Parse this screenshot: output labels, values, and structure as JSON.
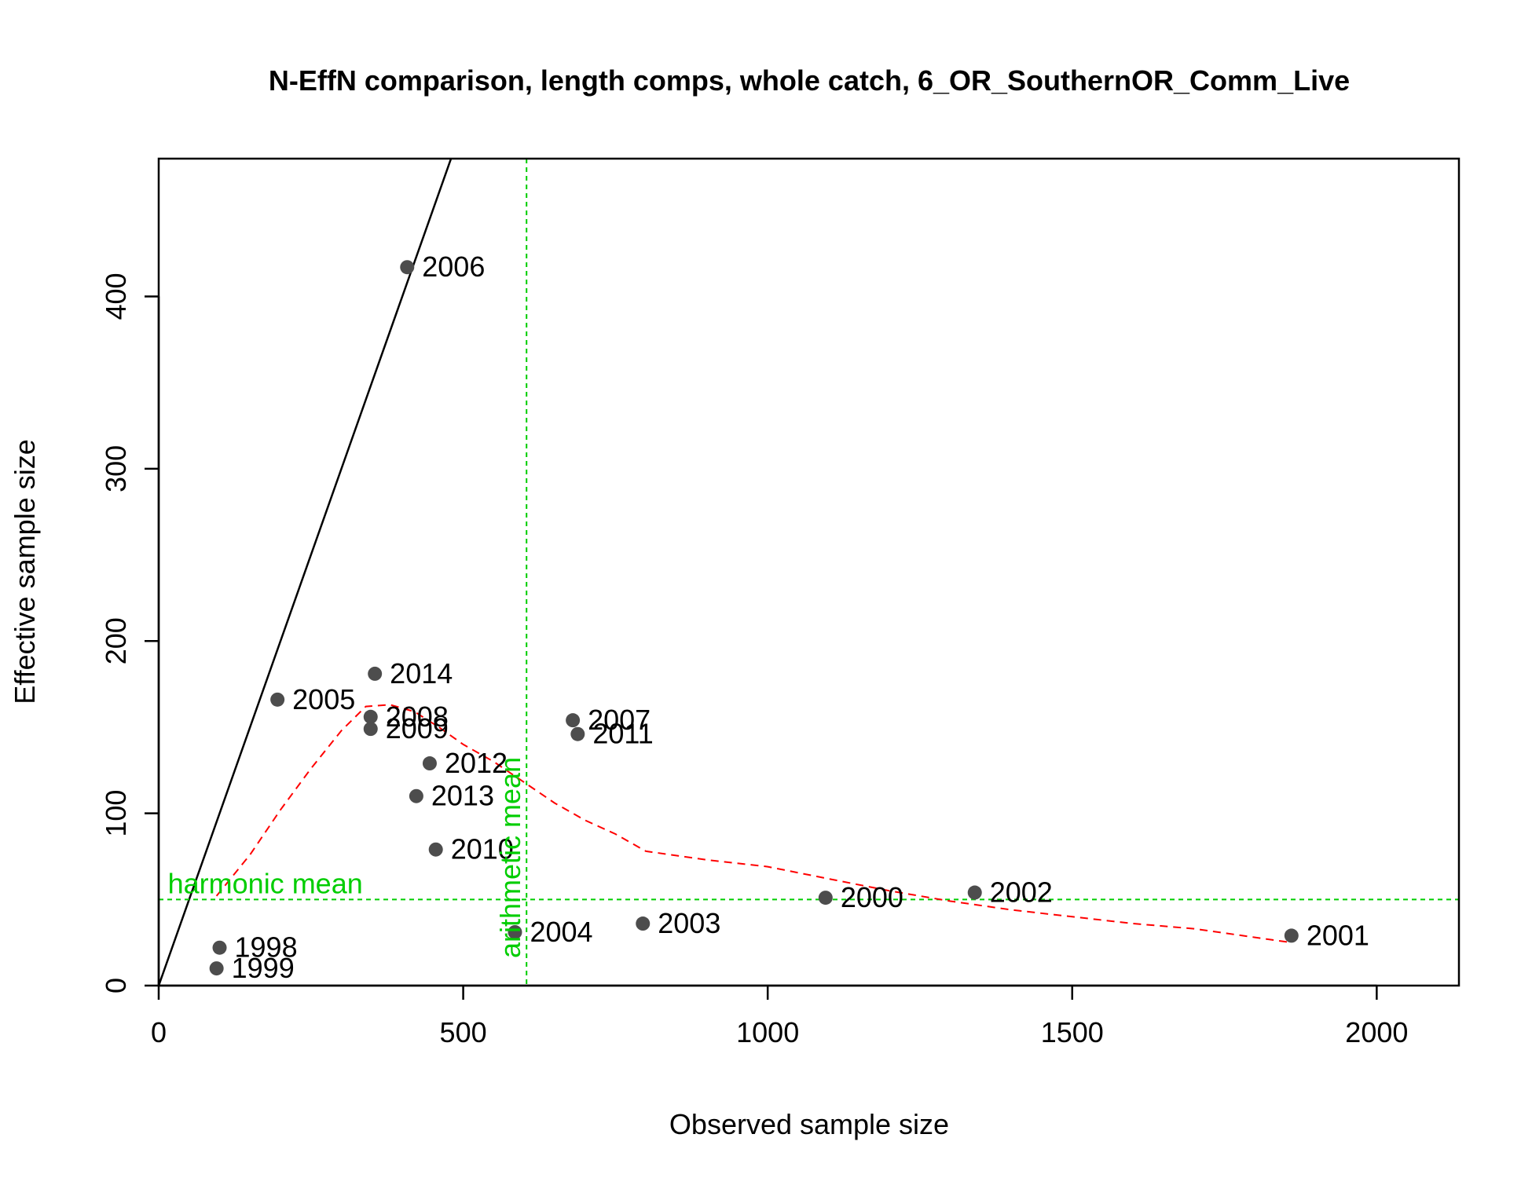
{
  "chart_data": {
    "type": "scatter",
    "title": "N-EffN comparison, length comps, whole catch, 6_OR_SouthernOR_Comm_Live",
    "xlabel": "Observed sample size",
    "ylabel": "Effective sample size",
    "xlim": [
      0,
      2135
    ],
    "ylim": [
      0,
      480
    ],
    "x_ticks": [
      "0",
      "500",
      "1000",
      "1500",
      "2000"
    ],
    "y_ticks": [
      "0",
      "100",
      "200",
      "300",
      "400"
    ],
    "points": [
      {
        "label": "1998",
        "x": 100,
        "y": 22
      },
      {
        "label": "1999",
        "x": 95,
        "y": 10
      },
      {
        "label": "2000",
        "x": 1095,
        "y": 51
      },
      {
        "label": "2001",
        "x": 1860,
        "y": 29
      },
      {
        "label": "2002",
        "x": 1340,
        "y": 54
      },
      {
        "label": "2003",
        "x": 795,
        "y": 36
      },
      {
        "label": "2004",
        "x": 585,
        "y": 31
      },
      {
        "label": "2005",
        "x": 195,
        "y": 166
      },
      {
        "label": "2006",
        "x": 408,
        "y": 417
      },
      {
        "label": "2007",
        "x": 680,
        "y": 154
      },
      {
        "label": "2008",
        "x": 348,
        "y": 156
      },
      {
        "label": "2009",
        "x": 348,
        "y": 149
      },
      {
        "label": "2010",
        "x": 455,
        "y": 79
      },
      {
        "label": "2011",
        "x": 688,
        "y": 146
      },
      {
        "label": "2012",
        "x": 445,
        "y": 129
      },
      {
        "label": "2013",
        "x": 423,
        "y": 110
      },
      {
        "label": "2014",
        "x": 355,
        "y": 181
      }
    ],
    "one_to_one_line": true,
    "loess_smooth": {
      "x": [
        95,
        150,
        200,
        250,
        300,
        340,
        380,
        420,
        460,
        500,
        550,
        600,
        650,
        700,
        750,
        800,
        900,
        1000,
        1100,
        1200,
        1300,
        1400,
        1500,
        1600,
        1700,
        1800,
        1860
      ],
      "y": [
        52,
        76,
        102,
        126,
        148,
        162,
        163,
        159,
        150,
        140,
        130,
        118,
        106,
        96,
        88,
        78,
        73,
        69,
        62,
        55,
        49,
        44,
        40,
        36,
        33,
        28,
        25
      ],
      "color": "#ff0000"
    },
    "harmonic_mean": {
      "value": 50,
      "label": "harmonic mean",
      "color": "#00cd00"
    },
    "arithmetic_mean": {
      "value": 604,
      "label": "arithmetic mean",
      "color": "#00cd00"
    },
    "point_color": "#4d4d4d",
    "grid": false,
    "legend": "none"
  }
}
